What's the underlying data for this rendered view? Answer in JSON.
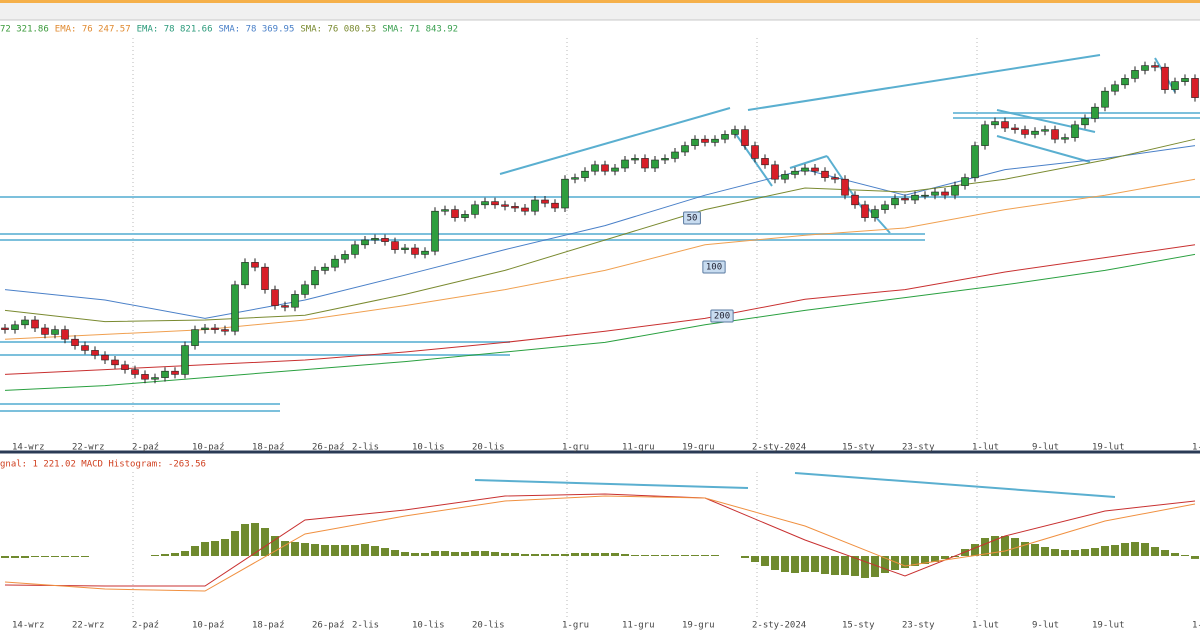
{
  "chart_data": [
    {
      "type": "candlestick",
      "legend": [
        {
          "text": "72 321.86",
          "color": "#3a9a3a"
        },
        {
          "text": "EMA: 76 247.57",
          "color": "#e08a30"
        },
        {
          "text": "EMA: 78 821.66",
          "color": "#2a9a7a"
        },
        {
          "text": "SMA: 78 369.95",
          "color": "#4a80c8"
        },
        {
          "text": "SMA: 76 080.53",
          "color": "#7a8a30"
        },
        {
          "text": "SMA: 71 843.92",
          "color": "#3aa050"
        }
      ],
      "categories": [
        null,
        "14-wrz",
        null,
        null,
        null,
        null,
        null,
        "22-wrz",
        null,
        null,
        null,
        null,
        null,
        "2-paź",
        null,
        null,
        null,
        null,
        null,
        "10-paź",
        null,
        null,
        null,
        null,
        null,
        "18-paź",
        null,
        null,
        null,
        null,
        null,
        "26-paź",
        null,
        null,
        null,
        "2-lis",
        null,
        null,
        null,
        null,
        null,
        "10-lis",
        null,
        null,
        null,
        null,
        null,
        "20-lis",
        null,
        null,
        null,
        null,
        null,
        null,
        null,
        null,
        "1-gru",
        null,
        null,
        null,
        null,
        null,
        "11-gru",
        null,
        null,
        null,
        null,
        null,
        "19-gru",
        null,
        null,
        null,
        null,
        null,
        null,
        "2-sty-2024",
        null,
        null,
        null,
        null,
        null,
        null,
        null,
        null,
        "15-sty",
        null,
        null,
        null,
        null,
        null,
        "23-sty",
        null,
        null,
        null,
        null,
        null,
        null,
        "1-lut",
        null,
        null,
        null,
        null,
        null,
        "9-lut",
        null,
        null,
        null,
        null,
        null,
        "19-lut",
        null,
        null,
        null,
        null,
        null,
        null,
        null,
        null,
        null,
        "1-"
      ],
      "open": [
        67000,
        66900,
        67200,
        67500,
        67000,
        66600,
        66900,
        66300,
        65900,
        65600,
        65300,
        65000,
        64700,
        64400,
        64100,
        63800,
        63900,
        64300,
        64100,
        65900,
        66900,
        67000,
        66900,
        66800,
        69700,
        71100,
        70800,
        69400,
        68400,
        68300,
        69100,
        69700,
        70600,
        70800,
        71300,
        71600,
        72200,
        72500,
        72600,
        72400,
        71900,
        72000,
        71600,
        71800,
        74300,
        74400,
        73900,
        74100,
        74700,
        74900,
        74700,
        74600,
        74500,
        74300,
        75000,
        74800,
        74500,
        76300,
        76400,
        76800,
        77200,
        76800,
        77000,
        77500,
        77600,
        77000,
        77500,
        77600,
        78000,
        78400,
        78800,
        78600,
        78800,
        79100,
        79400,
        78400,
        77600,
        77200,
        76300,
        76600,
        76800,
        77000,
        76800,
        76400,
        76300,
        75300,
        74700,
        73900,
        74400,
        74700,
        75100,
        75000,
        75300,
        75300,
        75500,
        75300,
        75900,
        76400,
        78400,
        79700,
        79900,
        79500,
        79400,
        79100,
        79300,
        79400,
        78800,
        78900,
        79700,
        80100,
        80800,
        81800,
        82200,
        82600,
        83100,
        83400,
        83300,
        81900,
        82400,
        82600
      ],
      "high": [
        67250,
        67450,
        67750,
        67750,
        67250,
        67150,
        67150,
        66550,
        66150,
        65850,
        65550,
        65250,
        64950,
        64650,
        64350,
        64150,
        64550,
        64550,
        66150,
        67150,
        67250,
        67250,
        67150,
        69950,
        71350,
        71350,
        71050,
        69650,
        68650,
        69350,
        69950,
        70850,
        71050,
        71550,
        71850,
        72450,
        72750,
        72850,
        72850,
        72650,
        72250,
        72250,
        72050,
        74550,
        74650,
        74650,
        74350,
        74950,
        75150,
        75150,
        74950,
        74850,
        74750,
        75250,
        75250,
        75050,
        76550,
        76650,
        77050,
        77450,
        77450,
        77250,
        77750,
        77850,
        77850,
        77750,
        77850,
        78250,
        78650,
        79050,
        79050,
        79050,
        79350,
        79650,
        79650,
        78650,
        77850,
        77450,
        76850,
        77050,
        77250,
        77250,
        77050,
        76650,
        76550,
        75550,
        74950,
        74650,
        74950,
        75350,
        75350,
        75550,
        75550,
        75750,
        75750,
        76150,
        76650,
        78650,
        79950,
        80150,
        80150,
        79750,
        79650,
        79550,
        79650,
        79650,
        79150,
        79950,
        80350,
        81050,
        82050,
        82450,
        82850,
        83350,
        83650,
        83650,
        83550,
        82650,
        82850,
        82850
      ],
      "low": [
        66650,
        66650,
        66950,
        66750,
        66350,
        66350,
        66050,
        65650,
        65350,
        65050,
        64750,
        64450,
        64150,
        63850,
        63550,
        63550,
        63650,
        63850,
        63850,
        65650,
        66650,
        66650,
        66550,
        66550,
        69450,
        70550,
        69150,
        68150,
        68050,
        68050,
        68850,
        69450,
        70350,
        70550,
        71050,
        71350,
        71950,
        72250,
        72150,
        71650,
        71650,
        71350,
        71350,
        71550,
        74050,
        73650,
        73650,
        73850,
        74450,
        74450,
        74350,
        74250,
        74050,
        74050,
        74550,
        74250,
        74250,
        76050,
        76150,
        76550,
        76550,
        76550,
        76750,
        77250,
        76750,
        76750,
        77250,
        77350,
        77750,
        78150,
        78350,
        78350,
        78550,
        78850,
        78150,
        77350,
        76950,
        76050,
        76050,
        76350,
        76550,
        76550,
        76150,
        76050,
        75050,
        74450,
        73650,
        73650,
        74150,
        74450,
        74750,
        74750,
        75050,
        75050,
        75050,
        75050,
        75650,
        76150,
        78150,
        79450,
        79250,
        79150,
        78850,
        78850,
        79050,
        78550,
        78550,
        78650,
        79450,
        79850,
        80550,
        81550,
        81950,
        82350,
        82850,
        83050,
        81650,
        81650,
        82150,
        81150
      ],
      "close": [
        66900,
        67200,
        67500,
        67000,
        66600,
        66900,
        66300,
        65900,
        65600,
        65300,
        65000,
        64700,
        64400,
        64100,
        63800,
        63900,
        64300,
        64100,
        65900,
        66900,
        67000,
        66900,
        66800,
        69700,
        71100,
        70800,
        69400,
        68400,
        68300,
        69100,
        69700,
        70600,
        70800,
        71300,
        71600,
        72200,
        72500,
        72600,
        72400,
        71900,
        72000,
        71600,
        71800,
        74300,
        74400,
        73900,
        74100,
        74700,
        74900,
        74700,
        74600,
        74500,
        74300,
        75000,
        74800,
        74500,
        76300,
        76400,
        76800,
        77200,
        76800,
        77000,
        77500,
        77600,
        77000,
        77500,
        77600,
        78000,
        78400,
        78800,
        78600,
        78800,
        79100,
        79400,
        78400,
        77600,
        77200,
        76300,
        76600,
        76800,
        77000,
        76800,
        76400,
        76300,
        75300,
        74700,
        73900,
        74400,
        74700,
        75100,
        75000,
        75300,
        75300,
        75500,
        75300,
        75900,
        76400,
        78400,
        79700,
        79900,
        79500,
        79400,
        79100,
        79300,
        79400,
        78800,
        78900,
        79700,
        80100,
        80800,
        81800,
        82200,
        82600,
        83100,
        83400,
        83300,
        81900,
        82400,
        82600,
        81400
      ],
      "up_color": "#2e9e3e",
      "down_color": "#d81e28",
      "ylim": [
        60000,
        85000
      ],
      "overlays": [
        {
          "color": "#4a80c8",
          "x": [
            0,
            10,
            20,
            30,
            40,
            50,
            60,
            70,
            80,
            90,
            100,
            110,
            119
          ],
          "values": [
            69400,
            68750,
            67600,
            68750,
            70300,
            71900,
            73400,
            75300,
            76900,
            75300,
            76900,
            77600,
            78400
          ]
        },
        {
          "color": "#7a8a30",
          "x": [
            0,
            10,
            20,
            30,
            40,
            50,
            60,
            70,
            80,
            90,
            100,
            110,
            119
          ],
          "values": [
            68100,
            67400,
            67500,
            67800,
            69100,
            70600,
            72500,
            74400,
            75750,
            75500,
            76300,
            77500,
            78800
          ]
        },
        {
          "color": "#f0a050",
          "x": [
            0,
            10,
            20,
            30,
            40,
            50,
            60,
            70,
            80,
            90,
            100,
            110,
            119
          ],
          "values": [
            66300,
            66600,
            66900,
            67500,
            68400,
            69400,
            70600,
            72200,
            72800,
            73250,
            74400,
            75300,
            76300
          ]
        },
        {
          "color": "#c83030",
          "x": [
            0,
            10,
            20,
            30,
            40,
            50,
            60,
            70,
            80,
            90,
            100,
            110,
            119
          ],
          "values": [
            64100,
            64400,
            64700,
            65000,
            65500,
            66100,
            66800,
            67600,
            68800,
            69400,
            70500,
            71400,
            72200
          ]
        },
        {
          "color": "#2aa040",
          "x": [
            0,
            10,
            20,
            30,
            40,
            50,
            60,
            70,
            80,
            90,
            100,
            110,
            119
          ],
          "values": [
            63100,
            63400,
            63900,
            64400,
            64900,
            65500,
            66100,
            67200,
            68100,
            68900,
            69700,
            70600,
            71600
          ]
        }
      ],
      "annotations": [
        "50",
        "100",
        "200"
      ]
    },
    {
      "type": "macd",
      "legend": [
        {
          "text": "gnal: 1 221.02 MACD Histogram: -263.56",
          "color": "#d04020"
        }
      ],
      "histogram": [
        -180,
        -180,
        -180,
        -90,
        -90,
        -90,
        -90,
        -90,
        -90,
        0,
        0,
        0,
        0,
        0,
        0,
        90,
        180,
        270,
        450,
        900,
        1260,
        1350,
        1530,
        2250,
        2880,
        2970,
        2520,
        1800,
        1350,
        1260,
        1170,
        1080,
        990,
        990,
        990,
        990,
        1080,
        900,
        720,
        540,
        360,
        270,
        270,
        450,
        450,
        360,
        360,
        450,
        450,
        360,
        270,
        270,
        180,
        180,
        180,
        180,
        180,
        270,
        270,
        270,
        270,
        270,
        180,
        90,
        90,
        90,
        90,
        90,
        90,
        90,
        90,
        90,
        0,
        0,
        -180,
        -540,
        -900,
        -1260,
        -1440,
        -1530,
        -1440,
        -1440,
        -1620,
        -1710,
        -1710,
        -1800,
        -1980,
        -1890,
        -1530,
        -1260,
        -1080,
        -900,
        -720,
        -540,
        -270,
        -90,
        630,
        1080,
        1620,
        1800,
        1800,
        1620,
        1260,
        1080,
        810,
        630,
        540,
        540,
        630,
        720,
        900,
        990,
        1170,
        1260,
        1170,
        810,
        540,
        270,
        90,
        -263.56
      ],
      "histogram_color": "#6f8a2e",
      "series": [
        {
          "color": "#c83030",
          "x": [
            0,
            10,
            20,
            30,
            40,
            50,
            60,
            70,
            80,
            90,
            100,
            110,
            119
          ],
          "values": [
            -2610,
            -2700,
            -2700,
            3240,
            4140,
            5400,
            5580,
            5220,
            1440,
            -1800,
            1800,
            4050,
            4950
          ]
        },
        {
          "color": "#f09040",
          "x": [
            0,
            10,
            20,
            30,
            40,
            50,
            60,
            70,
            80,
            90,
            100,
            110,
            119
          ],
          "values": [
            -2340,
            -2970,
            -3150,
            1980,
            3600,
            4950,
            5400,
            5220,
            2700,
            -900,
            450,
            3150,
            4680
          ]
        }
      ],
      "ylim": [
        -6210,
        8640
      ]
    }
  ]
}
